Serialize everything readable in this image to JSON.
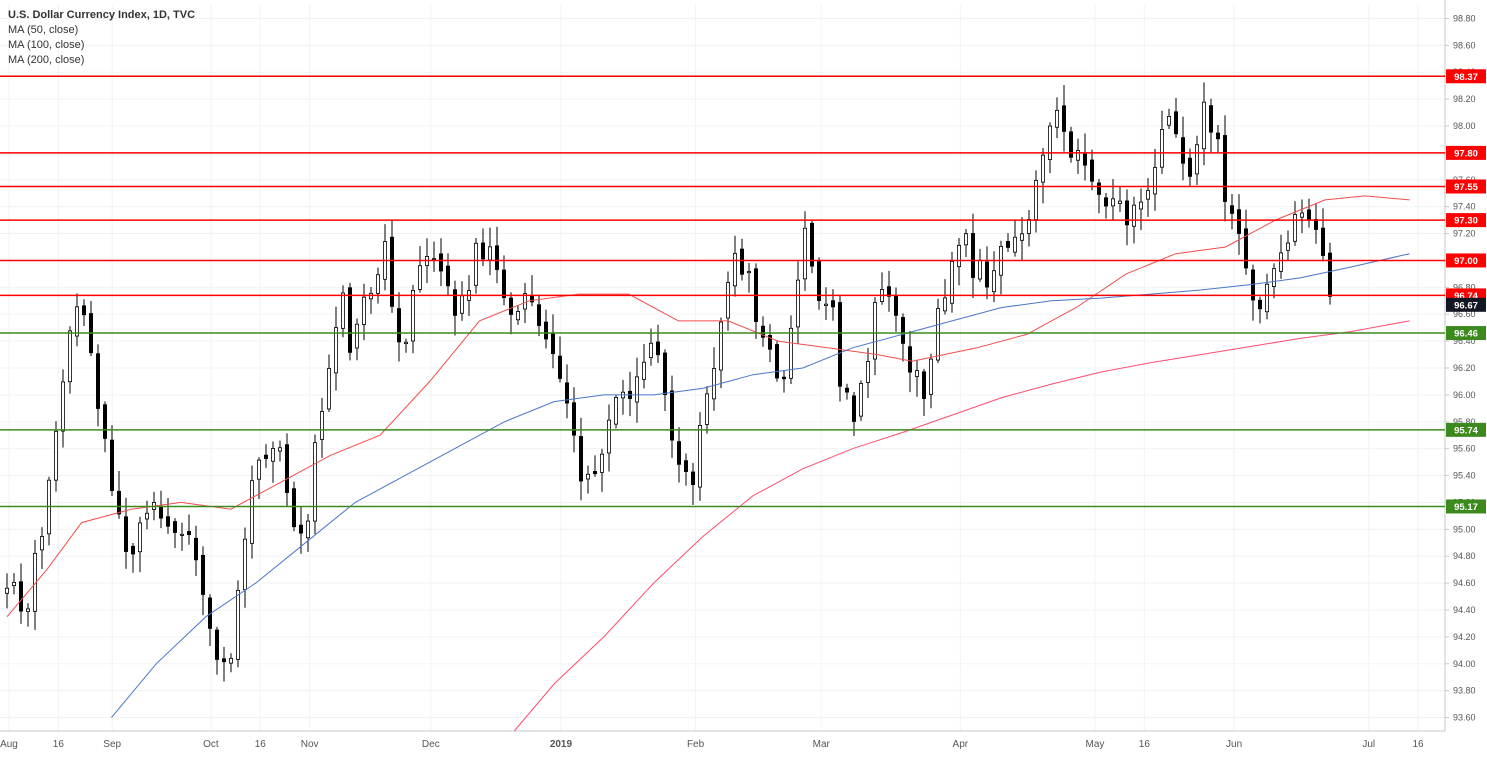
{
  "header": {
    "title": "U.S. Dollar Currency Index, 1D, TVC",
    "indicators": [
      "MA (50, close)",
      "MA (100, close)",
      "MA (200, close)"
    ]
  },
  "chart_data": {
    "type": "candlestick",
    "title": "U.S. Dollar Currency Index, 1D, TVC",
    "ylim": [
      93.5,
      98.9
    ],
    "y_ticks": [
      93.6,
      93.8,
      94.0,
      94.2,
      94.4,
      94.6,
      94.8,
      95.0,
      95.2,
      95.4,
      95.6,
      95.8,
      96.0,
      96.2,
      96.4,
      96.6,
      96.8,
      97.0,
      97.2,
      97.4,
      97.6,
      97.8,
      98.0,
      98.2,
      98.4,
      98.6,
      98.8
    ],
    "y_tick_labels": [
      "93.60",
      "93.80",
      "94.00",
      "94.20",
      "94.40",
      "94.60",
      "94.80",
      "95.00",
      "95.20",
      "95.40",
      "95.60",
      "95.80",
      "96.00",
      "96.20",
      "96.40",
      "96.60",
      "96.80",
      "97.00",
      "97.20",
      "97.40",
      "97.60",
      "97.80",
      "98.00",
      "98.20",
      "98.40",
      "98.60",
      "98.80"
    ],
    "x_ticks": [
      "Aug",
      "16",
      "Sep",
      "Oct",
      "16",
      "Nov",
      "Dec",
      "2019",
      "Feb",
      "Mar",
      "Apr",
      "May",
      "16",
      "Jun",
      "Jul",
      "16"
    ],
    "x_tick_days": [
      0,
      11,
      23,
      45,
      56,
      67,
      94,
      123,
      153,
      181,
      212,
      242,
      253,
      273,
      303,
      314
    ],
    "x_range_days": [
      -2,
      320
    ],
    "last_price": {
      "value": 96.67,
      "label": "96.67",
      "color": "#131722"
    },
    "resistance_levels": [
      {
        "value": 98.37,
        "label": "98.37"
      },
      {
        "value": 97.8,
        "label": "97.80"
      },
      {
        "value": 97.55,
        "label": "97.55"
      },
      {
        "value": 97.3,
        "label": "97.30"
      },
      {
        "value": 97.0,
        "label": "97.00"
      },
      {
        "value": 96.74,
        "label": "96.74"
      }
    ],
    "support_levels": [
      {
        "value": 96.46,
        "label": "96.46"
      },
      {
        "value": 95.74,
        "label": "95.74"
      },
      {
        "value": 95.17,
        "label": "95.17"
      }
    ],
    "colors": {
      "resistance": "#ff0000",
      "support": "#3c8a1e",
      "ma50": "#f24d4d",
      "ma100": "#4a76c9",
      "ma200": "#ff4d6e",
      "up_body": "#ffffff",
      "down_body": "#000000",
      "candle_outline": "#000000"
    },
    "series": [
      {
        "name": "MA (50, close)",
        "color": "#f24d4d",
        "points": [
          [
            0,
            94.35
          ],
          [
            8,
            94.7
          ],
          [
            15,
            95.05
          ],
          [
            25,
            95.15
          ],
          [
            35,
            95.2
          ],
          [
            45,
            95.15
          ],
          [
            55,
            95.35
          ],
          [
            65,
            95.55
          ],
          [
            75,
            95.7
          ],
          [
            85,
            96.1
          ],
          [
            95,
            96.55
          ],
          [
            105,
            96.7
          ],
          [
            115,
            96.75
          ],
          [
            125,
            96.75
          ],
          [
            135,
            96.55
          ],
          [
            145,
            96.55
          ],
          [
            155,
            96.4
          ],
          [
            165,
            96.35
          ],
          [
            175,
            96.3
          ],
          [
            182,
            96.25
          ],
          [
            195,
            96.35
          ],
          [
            205,
            96.45
          ],
          [
            215,
            96.65
          ],
          [
            225,
            96.9
          ],
          [
            235,
            97.05
          ],
          [
            245,
            97.1
          ],
          [
            255,
            97.3
          ],
          [
            265,
            97.45
          ],
          [
            273,
            97.48
          ],
          [
            282,
            97.45
          ]
        ]
      },
      {
        "name": "MA (100, close)",
        "color": "#4a76c9",
        "points": [
          [
            21,
            93.6
          ],
          [
            30,
            94.0
          ],
          [
            40,
            94.35
          ],
          [
            50,
            94.6
          ],
          [
            60,
            94.9
          ],
          [
            70,
            95.2
          ],
          [
            80,
            95.4
          ],
          [
            90,
            95.6
          ],
          [
            100,
            95.8
          ],
          [
            110,
            95.95
          ],
          [
            120,
            96.0
          ],
          [
            130,
            96.0
          ],
          [
            140,
            96.05
          ],
          [
            150,
            96.15
          ],
          [
            160,
            96.2
          ],
          [
            170,
            96.35
          ],
          [
            180,
            96.45
          ],
          [
            190,
            96.55
          ],
          [
            200,
            96.65
          ],
          [
            210,
            96.7
          ],
          [
            220,
            96.72
          ],
          [
            230,
            96.75
          ],
          [
            240,
            96.78
          ],
          [
            250,
            96.82
          ],
          [
            260,
            96.87
          ],
          [
            270,
            96.95
          ],
          [
            282,
            97.05
          ]
        ]
      },
      {
        "name": "MA (200, close)",
        "color": "#ff4d6e",
        "points": [
          [
            102,
            93.5
          ],
          [
            110,
            93.85
          ],
          [
            120,
            94.2
          ],
          [
            130,
            94.6
          ],
          [
            140,
            94.95
          ],
          [
            150,
            95.25
          ],
          [
            160,
            95.45
          ],
          [
            170,
            95.6
          ],
          [
            180,
            95.72
          ],
          [
            190,
            95.85
          ],
          [
            200,
            95.98
          ],
          [
            210,
            96.08
          ],
          [
            220,
            96.17
          ],
          [
            230,
            96.24
          ],
          [
            240,
            96.3
          ],
          [
            250,
            96.36
          ],
          [
            260,
            96.42
          ],
          [
            270,
            96.47
          ],
          [
            282,
            96.55
          ]
        ]
      }
    ]
  }
}
